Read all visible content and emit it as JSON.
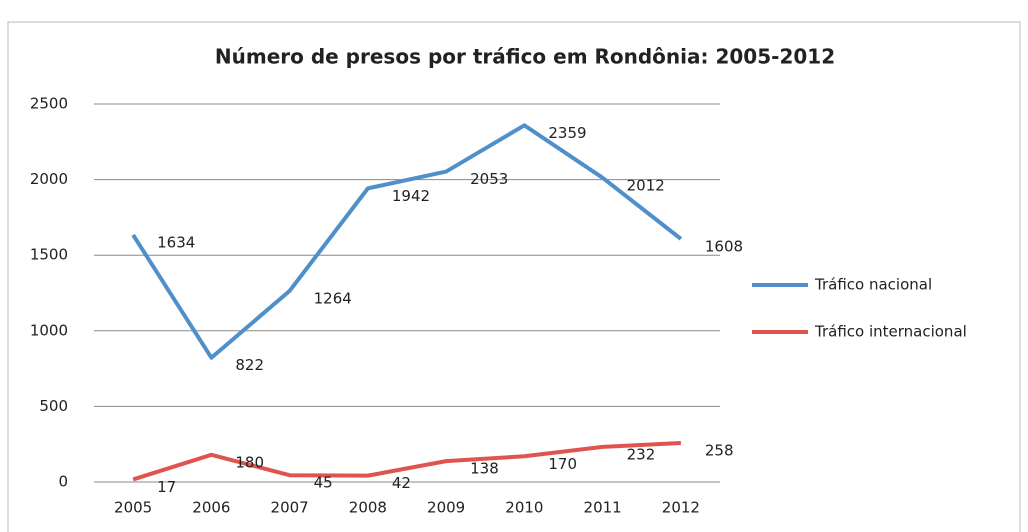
{
  "chart_data": {
    "type": "line",
    "title": "Número de presos por tráfico em Rondônia: 2005-2012",
    "categories": [
      "2005",
      "2006",
      "2007",
      "2008",
      "2009",
      "2010",
      "2011",
      "2012"
    ],
    "series": [
      {
        "name": "Tráfico nacional",
        "color": "#4f8fca",
        "values": [
          1634,
          822,
          1264,
          1942,
          2053,
          2359,
          2012,
          1608
        ]
      },
      {
        "name": "Tráfico internacional",
        "color": "#e05450",
        "values": [
          17,
          180,
          45,
          42,
          138,
          170,
          232,
          258
        ]
      }
    ],
    "ylim": [
      0,
      2500
    ],
    "yticks": [
      0,
      500,
      1000,
      1500,
      2000,
      2500
    ],
    "grid": true,
    "legend": "right"
  }
}
